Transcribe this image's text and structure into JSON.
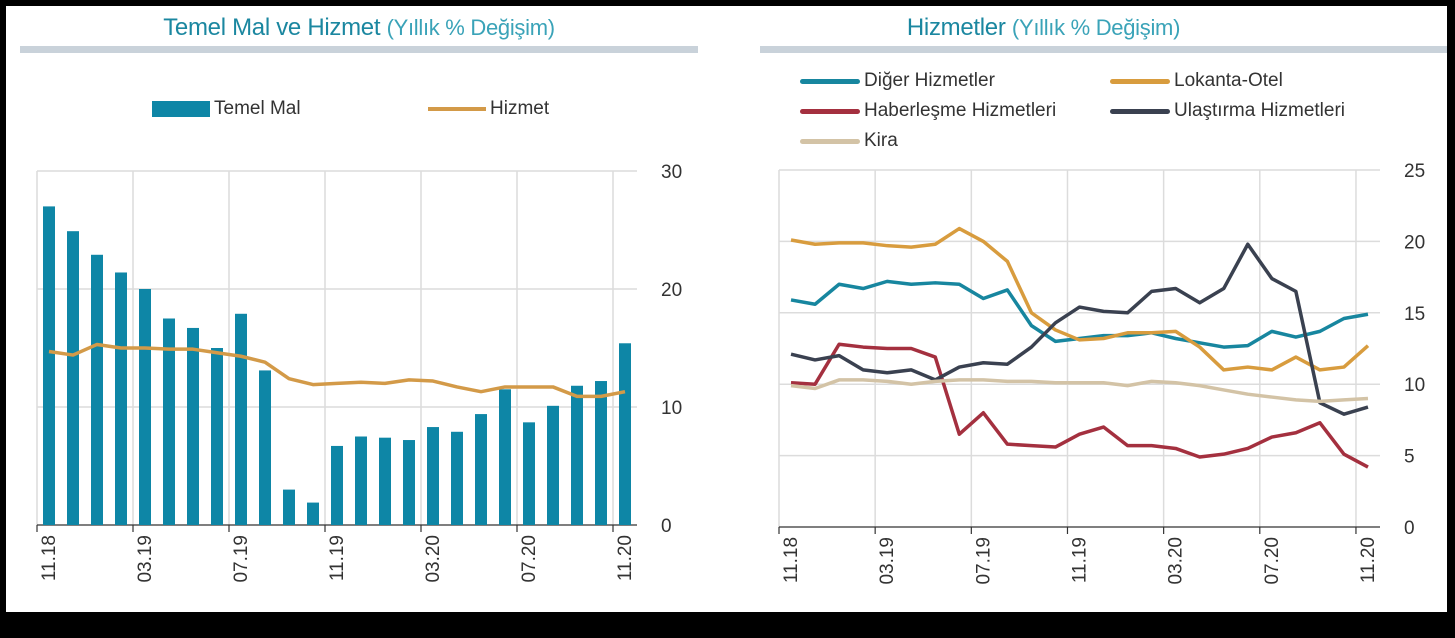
{
  "chart_data": [
    {
      "type": "bar+line",
      "title": "Temel Mal ve Hizmet",
      "subtitle": "(Yıllık % Değişim)",
      "categories": [
        "11.18",
        "12.18",
        "01.19",
        "02.19",
        "03.19",
        "04.19",
        "05.19",
        "06.19",
        "07.19",
        "08.19",
        "09.19",
        "10.19",
        "11.19",
        "12.19",
        "01.20",
        "02.20",
        "03.20",
        "04.20",
        "05.20",
        "06.20",
        "07.20",
        "08.20",
        "09.20",
        "10.20",
        "11.20"
      ],
      "tick_labels": [
        "11.18",
        "03.19",
        "07.19",
        "11.19",
        "03.20",
        "07.20",
        "11.20"
      ],
      "y_ticks": [
        0,
        10,
        20,
        30
      ],
      "ylim": [
        0,
        30
      ],
      "y_axis_side": "right",
      "grid": true,
      "legend_position": "top",
      "series": [
        {
          "name": "Temel Mal",
          "kind": "bar",
          "color": "#0e86a6",
          "values": [
            27.0,
            24.9,
            22.9,
            21.4,
            20.0,
            17.5,
            16.7,
            15.0,
            17.9,
            13.1,
            3.0,
            1.9,
            6.7,
            7.5,
            7.4,
            7.2,
            8.3,
            7.9,
            9.4,
            11.5,
            8.7,
            10.1,
            11.8,
            12.2,
            15.4
          ]
        },
        {
          "name": "Hizmet",
          "kind": "line",
          "color": "#d39a48",
          "values": [
            14.7,
            14.4,
            15.3,
            15.0,
            15.0,
            14.9,
            14.9,
            14.6,
            14.3,
            13.8,
            12.4,
            11.9,
            12.0,
            12.1,
            12.0,
            12.3,
            12.2,
            11.7,
            11.3,
            11.7,
            11.7,
            11.7,
            10.9,
            10.9,
            11.3
          ]
        }
      ]
    },
    {
      "type": "line",
      "title": "Hizmetler",
      "subtitle": "(Yıllık % Değişim)",
      "categories": [
        "11.18",
        "12.18",
        "01.19",
        "02.19",
        "03.19",
        "04.19",
        "05.19",
        "06.19",
        "07.19",
        "08.19",
        "09.19",
        "10.19",
        "11.19",
        "12.19",
        "01.20",
        "02.20",
        "03.20",
        "04.20",
        "05.20",
        "06.20",
        "07.20",
        "08.20",
        "09.20",
        "10.20",
        "11.20"
      ],
      "tick_labels": [
        "11.18",
        "03.19",
        "07.19",
        "11.19",
        "03.20",
        "07.20",
        "11.20"
      ],
      "y_ticks": [
        0,
        5,
        10,
        15,
        20,
        25
      ],
      "ylim": [
        0,
        25
      ],
      "y_axis_side": "right",
      "grid": true,
      "legend_position": "top",
      "series": [
        {
          "name": "Diğer Hizmetler",
          "color": "#17869f",
          "values": [
            15.9,
            15.6,
            17.0,
            16.7,
            17.2,
            17.0,
            17.1,
            17.0,
            16.0,
            16.6,
            14.1,
            13.0,
            13.2,
            13.4,
            13.4,
            13.6,
            13.2,
            12.9,
            12.6,
            12.7,
            13.7,
            13.3,
            13.7,
            14.6,
            14.9
          ]
        },
        {
          "name": "Lokanta-Otel",
          "color": "#d89c3e",
          "values": [
            20.1,
            19.8,
            19.9,
            19.9,
            19.7,
            19.6,
            19.8,
            20.9,
            20.0,
            18.6,
            15.0,
            13.8,
            13.1,
            13.2,
            13.6,
            13.6,
            13.7,
            12.6,
            11.0,
            11.2,
            11.0,
            11.9,
            11.0,
            11.2,
            12.7
          ]
        },
        {
          "name": "Haberleşme Hizmetleri",
          "color": "#a4303f",
          "values": [
            10.1,
            10.0,
            12.8,
            12.6,
            12.5,
            12.5,
            11.9,
            6.5,
            8.0,
            5.8,
            5.7,
            5.6,
            6.5,
            7.0,
            5.7,
            5.7,
            5.5,
            4.9,
            5.1,
            5.5,
            6.3,
            6.6,
            7.3,
            5.1,
            4.2
          ]
        },
        {
          "name": "Ulaştırma Hizmetleri",
          "color": "#3a4150",
          "values": [
            12.1,
            11.7,
            12.0,
            11.0,
            10.8,
            11.0,
            10.3,
            11.2,
            11.5,
            11.4,
            12.6,
            14.3,
            15.4,
            15.1,
            15.0,
            16.5,
            16.7,
            15.7,
            16.7,
            19.8,
            17.4,
            16.5,
            8.7,
            7.9,
            8.4
          ]
        },
        {
          "name": "Kira",
          "color": "#d3c3a6",
          "values": [
            9.9,
            9.7,
            10.3,
            10.3,
            10.2,
            10.0,
            10.2,
            10.3,
            10.3,
            10.2,
            10.2,
            10.1,
            10.1,
            10.1,
            9.9,
            10.2,
            10.1,
            9.9,
            9.6,
            9.3,
            9.1,
            8.9,
            8.8,
            8.9,
            9.0
          ]
        }
      ]
    }
  ]
}
